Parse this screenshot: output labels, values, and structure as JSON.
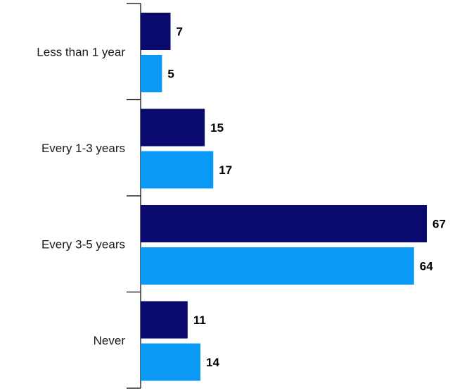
{
  "chart_data": {
    "type": "bar",
    "orientation": "horizontal",
    "categories": [
      "Less than 1 year",
      "Every 1-3 years",
      "Every 3-5 years",
      "Never"
    ],
    "series": [
      {
        "values": [
          7,
          15,
          67,
          11
        ],
        "color": "#0a0a6e"
      },
      {
        "values": [
          5,
          17,
          64,
          14
        ],
        "color": "#0a99f5"
      }
    ],
    "xlim": [
      0,
      67
    ],
    "grid": false,
    "legend": "none",
    "data_labels": true
  }
}
